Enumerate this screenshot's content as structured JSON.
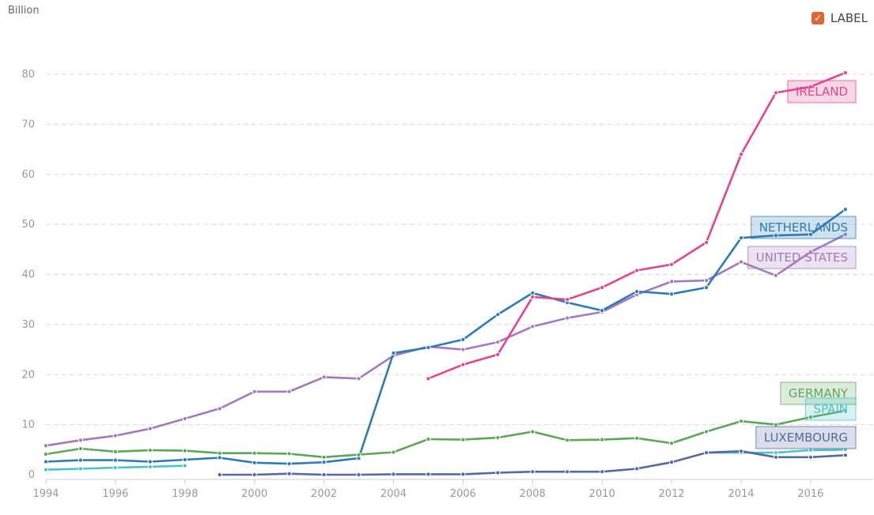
{
  "unit_label": "Billion",
  "legend_toggle": {
    "label": "LABEL",
    "checked": true,
    "check_glyph": "✓",
    "color": "#e0663a"
  },
  "chart_data": {
    "type": "line",
    "title": "",
    "xlabel": "",
    "ylabel": "Billion",
    "x_ticks": [
      1994,
      1996,
      1998,
      2000,
      2002,
      2004,
      2006,
      2008,
      2010,
      2012,
      2014,
      2016
    ],
    "y_ticks": [
      0,
      10,
      20,
      30,
      40,
      50,
      60,
      70,
      80
    ],
    "xlim": [
      1994,
      2017.8
    ],
    "ylim": [
      0,
      80
    ],
    "grid": true,
    "series": [
      {
        "name": "UNITED STATES",
        "color": "#a379bb",
        "x": [
          1994,
          1995,
          1996,
          1997,
          1998,
          1999,
          2000,
          2001,
          2002,
          2003,
          2004,
          2005,
          2006,
          2007,
          2008,
          2009,
          2010,
          2011,
          2012,
          2013,
          2014,
          2015,
          2016,
          2017
        ],
        "values": [
          5.8,
          6.9,
          7.8,
          9.2,
          11.2,
          13.2,
          16.6,
          16.6,
          19.5,
          19.2,
          23.8,
          25.6,
          25.0,
          26.5,
          29.6,
          31.3,
          32.5,
          36.0,
          38.6,
          38.8,
          42.5,
          39.8,
          44.5,
          48.0
        ]
      },
      {
        "name": "NETHERLANDS",
        "color": "#2c7bb6",
        "x": [
          1994,
          1995,
          1996,
          1997,
          1998,
          1999,
          2000,
          2001,
          2002,
          2003,
          2004,
          2005,
          2006,
          2007,
          2008,
          2009,
          2010,
          2011,
          2012,
          2013,
          2014,
          2015,
          2016,
          2017
        ],
        "values": [
          2.6,
          2.9,
          2.9,
          2.6,
          3.0,
          3.4,
          2.4,
          2.2,
          2.5,
          3.3,
          24.3,
          25.4,
          27.0,
          32.0,
          36.3,
          34.4,
          32.8,
          36.6,
          36.1,
          37.4,
          47.3,
          47.8,
          48.0,
          53.0
        ]
      },
      {
        "name": "IRELAND",
        "color": "#e2458e",
        "x": [
          2005,
          2006,
          2007,
          2008,
          2009,
          2010,
          2011,
          2012,
          2013,
          2014,
          2015,
          2016,
          2017
        ],
        "values": [
          19.2,
          22.0,
          24.0,
          35.5,
          35.0,
          37.4,
          40.8,
          42.0,
          46.4,
          64.0,
          76.3,
          77.5,
          80.3
        ]
      },
      {
        "name": "GERMANY",
        "color": "#5fa55a",
        "x": [
          1994,
          1995,
          1996,
          1997,
          1998,
          1999,
          2000,
          2001,
          2002,
          2003,
          2004,
          2005,
          2006,
          2007,
          2008,
          2009,
          2010,
          2011,
          2012,
          2013,
          2014,
          2015,
          2016,
          2017
        ],
        "values": [
          4.1,
          5.2,
          4.6,
          4.9,
          4.8,
          4.3,
          4.3,
          4.2,
          3.5,
          4.0,
          4.5,
          7.1,
          7.0,
          7.4,
          8.6,
          6.9,
          7.0,
          7.3,
          6.3,
          8.6,
          10.7,
          10.0,
          11.5,
          12.8
        ]
      },
      {
        "name": "SPAIN",
        "color": "#4cc3c9",
        "x": [
          1994,
          1995,
          1996,
          1997,
          1998,
          2013,
          2014,
          2015,
          2016,
          2017
        ],
        "values": [
          1.0,
          1.2,
          1.4,
          1.6,
          1.8,
          4.4,
          4.4,
          4.4,
          4.9,
          5.0
        ]
      },
      {
        "name": "LUXEMBOURG",
        "color": "#54699e",
        "x": [
          1999,
          2000,
          2001,
          2002,
          2003,
          2004,
          2005,
          2006,
          2007,
          2008,
          2009,
          2010,
          2011,
          2012,
          2013,
          2014,
          2015,
          2016,
          2017
        ],
        "values": [
          0.0,
          0.0,
          0.2,
          0.0,
          0.0,
          0.1,
          0.1,
          0.1,
          0.4,
          0.6,
          0.6,
          0.6,
          1.2,
          2.5,
          4.4,
          4.7,
          3.5,
          3.5,
          3.9
        ]
      }
    ],
    "label_order": [
      "IRELAND",
      "NETHERLANDS",
      "UNITED STATES",
      "GERMANY",
      "SPAIN",
      "LUXEMBOURG"
    ]
  }
}
